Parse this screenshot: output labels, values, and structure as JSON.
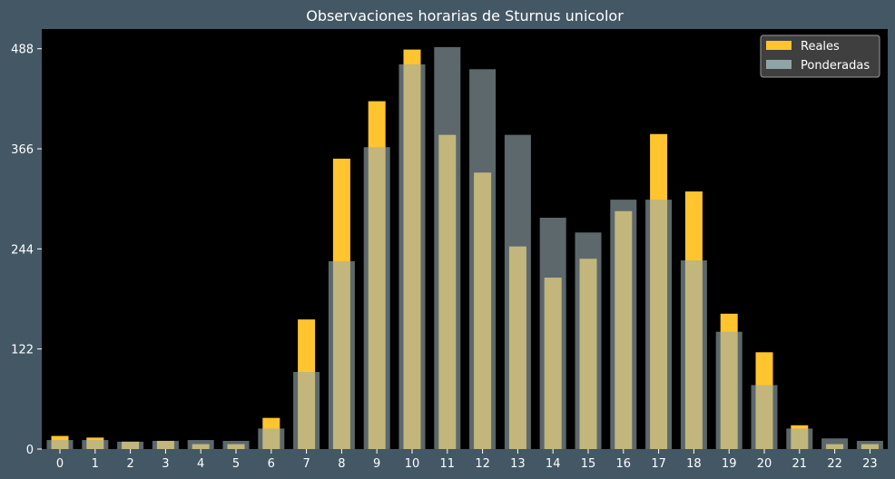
{
  "chart_data": {
    "type": "bar",
    "title": "Observaciones horarias de Sturnus unicolor",
    "xlabel": "",
    "ylabel": "",
    "categories": [
      "0",
      "1",
      "2",
      "3",
      "4",
      "5",
      "6",
      "7",
      "8",
      "9",
      "10",
      "11",
      "12",
      "13",
      "14",
      "15",
      "16",
      "17",
      "18",
      "19",
      "20",
      "21",
      "22",
      "23"
    ],
    "yticks": [
      0,
      122,
      244,
      366,
      488
    ],
    "ylim": [
      0,
      512
    ],
    "grid": false,
    "legend_position": "top-right",
    "series": [
      {
        "name": "Reales",
        "color": "#ffc42e",
        "values": [
          16,
          14,
          9,
          10,
          6,
          6,
          38,
          158,
          354,
          424,
          487,
          383,
          337,
          247,
          209,
          232,
          290,
          384,
          314,
          165,
          118,
          29,
          6,
          6
        ]
      },
      {
        "name": "Ponderadas",
        "color": "#9aaeb3",
        "opacity": 0.6,
        "values": [
          11,
          11,
          9,
          10,
          11,
          10,
          25,
          94,
          229,
          368,
          469,
          490,
          463,
          383,
          282,
          264,
          304,
          304,
          230,
          143,
          78,
          25,
          13,
          10
        ]
      }
    ]
  }
}
